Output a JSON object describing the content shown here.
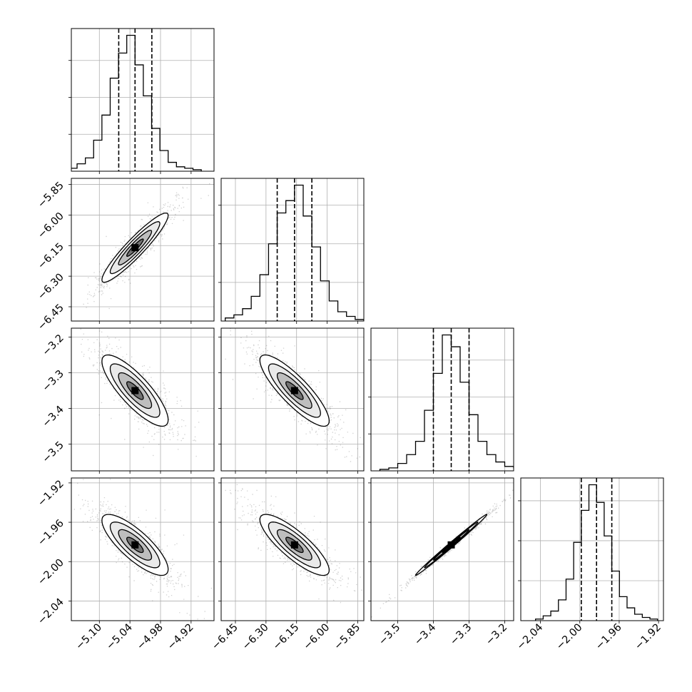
{
  "chart_data": {
    "type": "corner",
    "title": "",
    "params": [
      {
        "median": -5.03,
        "q16": -5.062,
        "q84": -4.997,
        "range": [
          -5.155,
          -4.875
        ],
        "ticks": [
          -5.1,
          -5.04,
          -4.98,
          -4.92
        ],
        "tick_labels": [
          "−5.10",
          "−5.04",
          "−4.98",
          "−4.92"
        ]
      },
      {
        "median": -6.16,
        "q16": -6.245,
        "q84": -6.075,
        "range": [
          -6.52,
          -5.82
        ],
        "ticks": [
          -6.45,
          -6.3,
          -6.15,
          -6.0,
          -5.85
        ],
        "tick_labels": [
          "−6.45",
          "−6.30",
          "−6.15",
          "−6.00",
          "−5.85"
        ]
      },
      {
        "median": -3.35,
        "q16": -3.4,
        "q84": -3.3,
        "range": [
          -3.575,
          -3.175
        ],
        "ticks": [
          -3.5,
          -3.4,
          -3.3,
          -3.2
        ],
        "tick_labels": [
          "−3.5",
          "−3.4",
          "−3.3",
          "−3.2"
        ]
      },
      {
        "median": -1.983,
        "q16": -1.9985,
        "q84": -1.9675,
        "range": [
          -2.06,
          -1.915
        ],
        "ticks": [
          -2.04,
          -2.0,
          -1.96,
          -1.92
        ],
        "tick_labels": [
          "−2.04",
          "−2.00",
          "−1.96",
          "−1.92"
        ]
      }
    ],
    "correlations": [
      {
        "pair": [
          0,
          1
        ],
        "rho": 0.93
      },
      {
        "pair": [
          0,
          2
        ],
        "rho": -0.82
      },
      {
        "pair": [
          1,
          2
        ],
        "rho": -0.85
      },
      {
        "pair": [
          0,
          3
        ],
        "rho": -0.8
      },
      {
        "pair": [
          1,
          3
        ],
        "rho": -0.83
      },
      {
        "pair": [
          2,
          3
        ],
        "rho": 0.995
      }
    ],
    "histograms": [
      [
        2,
        5,
        9,
        21,
        38,
        63,
        80,
        92,
        72,
        51,
        29,
        14,
        6,
        3,
        2,
        1
      ],
      [
        2,
        4,
        8,
        16,
        30,
        50,
        70,
        78,
        88,
        68,
        48,
        26,
        13,
        6,
        3,
        1
      ],
      [
        1,
        2,
        5,
        11,
        20,
        41,
        66,
        92,
        84,
        60,
        38,
        20,
        11,
        6,
        3,
        2
      ],
      [
        1,
        3,
        6,
        13,
        26,
        49,
        69,
        85,
        74,
        53,
        31,
        15,
        8,
        4,
        2,
        1
      ]
    ],
    "contour_levels_sigma": [
      0.5,
      1.0,
      1.5,
      2.0
    ],
    "grid": true,
    "quantile_lines": "dashed"
  }
}
